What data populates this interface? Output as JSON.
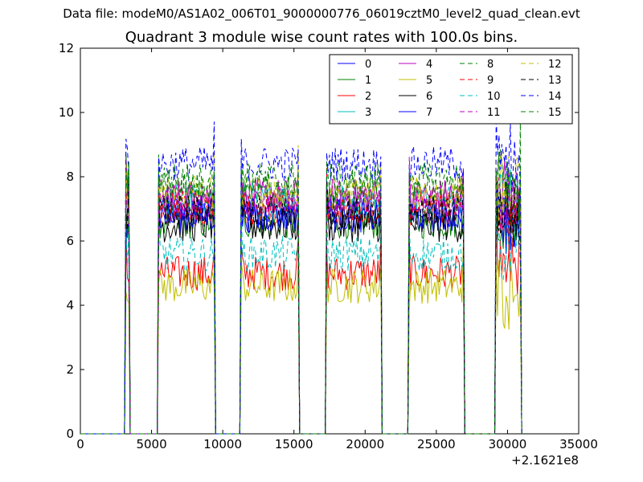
{
  "header": {
    "file_title": "Data file: modeM0/AS1A02_006T01_9000000776_06019cztM0_level2_quad_clean.evt"
  },
  "chart_data": {
    "type": "line",
    "title": "Quadrant 3 module wise count rates with 100.0s bins.",
    "xlabel": "",
    "ylabel": "",
    "x_offset_label": "+2.1621e8",
    "xlim": [
      0,
      35000
    ],
    "ylim": [
      0,
      12
    ],
    "x_ticks": [
      0,
      5000,
      10000,
      15000,
      20000,
      25000,
      30000,
      35000
    ],
    "x_tick_labels": [
      "0",
      "5000",
      "10000",
      "15000",
      "20000",
      "25000",
      "30000",
      "35000"
    ],
    "y_ticks": [
      0,
      2,
      4,
      6,
      8,
      10,
      12
    ],
    "y_tick_labels": [
      "0",
      "2",
      "4",
      "6",
      "8",
      "10",
      "12"
    ],
    "grid": false,
    "legend_position": "top-right",
    "legend_columns": 4,
    "bin_seconds": 100,
    "observation_segments": [
      {
        "start": 3200,
        "end": 3400
      },
      {
        "start": 5500,
        "end": 9400
      },
      {
        "start": 11300,
        "end": 15300
      },
      {
        "start": 17300,
        "end": 21100
      },
      {
        "start": 23100,
        "end": 26900
      },
      {
        "start": 29200,
        "end": 30900
      }
    ],
    "series": [
      {
        "name": "0",
        "color": "#0000ff",
        "dash": "solid",
        "mean_rate": 6.9
      },
      {
        "name": "1",
        "color": "#008000",
        "dash": "solid",
        "mean_rate": 6.6
      },
      {
        "name": "2",
        "color": "#ff0000",
        "dash": "solid",
        "mean_rate": 5.0
      },
      {
        "name": "3",
        "color": "#00bfbf",
        "dash": "solid",
        "mean_rate": 7.3
      },
      {
        "name": "4",
        "color": "#bf00bf",
        "dash": "solid",
        "mean_rate": 7.4
      },
      {
        "name": "5",
        "color": "#bfbf00",
        "dash": "solid",
        "mean_rate": 4.6
      },
      {
        "name": "6",
        "color": "#000000",
        "dash": "solid",
        "mean_rate": 6.5
      },
      {
        "name": "7",
        "color": "#0000ff",
        "dash": "solid",
        "mean_rate": 6.8
      },
      {
        "name": "8",
        "color": "#008000",
        "dash": "dashed",
        "mean_rate": 7.6
      },
      {
        "name": "9",
        "color": "#ff0000",
        "dash": "dashed",
        "mean_rate": 7.0
      },
      {
        "name": "10",
        "color": "#00bfbf",
        "dash": "dashed",
        "mean_rate": 5.6
      },
      {
        "name": "11",
        "color": "#bf00bf",
        "dash": "dashed",
        "mean_rate": 7.2
      },
      {
        "name": "12",
        "color": "#bfbf00",
        "dash": "dashed",
        "mean_rate": 7.5
      },
      {
        "name": "13",
        "color": "#000000",
        "dash": "dashed",
        "mean_rate": 6.9
      },
      {
        "name": "14",
        "color": "#0000ff",
        "dash": "dashed",
        "mean_rate": 8.4
      },
      {
        "name": "15",
        "color": "#008000",
        "dash": "dashed",
        "mean_rate": 7.9
      }
    ]
  }
}
